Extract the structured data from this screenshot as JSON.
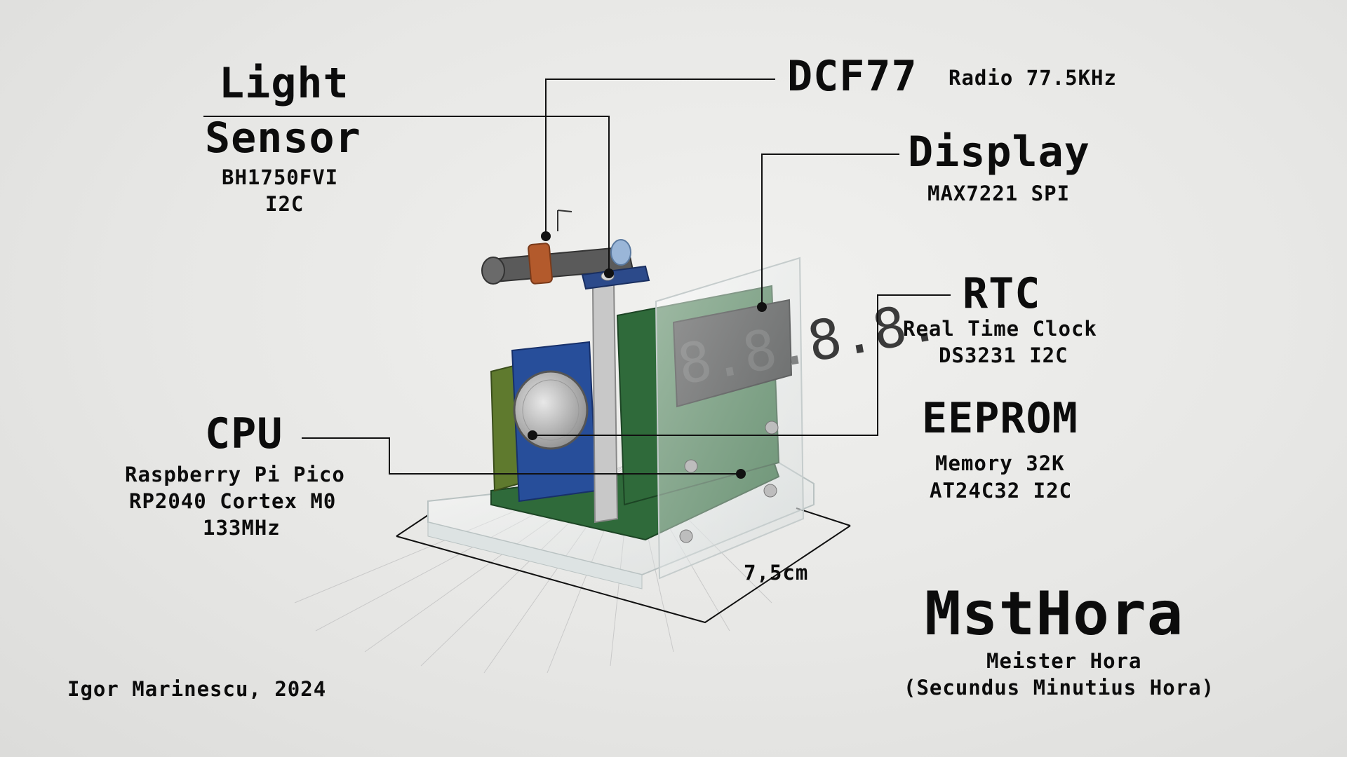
{
  "title": {
    "name": "MstHora",
    "subtitle1": "Meister Hora",
    "subtitle2": "(Secundus Minutius Hora)"
  },
  "author": "Igor Marinescu, 2024",
  "labels": {
    "light": {
      "title1": "Light",
      "title2": "Sensor",
      "sub1": "BH1750FVI",
      "sub2": "I2C"
    },
    "dcf77": {
      "title": "DCF77",
      "sub": "Radio 77.5KHz"
    },
    "display": {
      "title": "Display",
      "sub": "MAX7221 SPI"
    },
    "rtc": {
      "title": "RTC",
      "sub1": "Real Time Clock",
      "sub2": "DS3231 I2C"
    },
    "eeprom": {
      "title": "EEPROM",
      "sub1": "Memory 32K",
      "sub2": "AT24C32 I2C"
    },
    "cpu": {
      "title": "CPU",
      "sub1": "Raspberry Pi Pico",
      "sub2": "RP2040 Cortex M0",
      "sub3": "133MHz"
    }
  },
  "dimension": "7,5cm",
  "display_digits": "8.8.8.8.",
  "colors": {
    "pcb": "#2f6a3a",
    "rtc_board": "#274e9a",
    "coil": "#b35a2c",
    "digit": "#2a2a2a",
    "background": "#e8e8e6"
  }
}
